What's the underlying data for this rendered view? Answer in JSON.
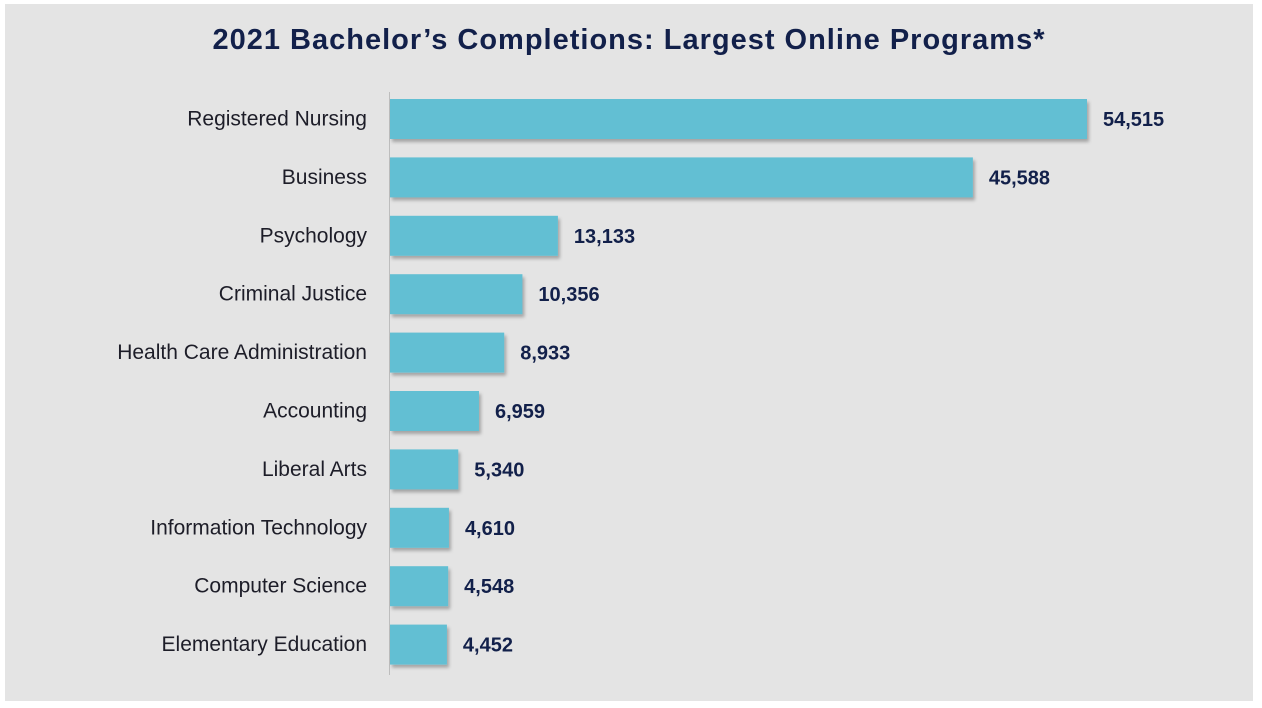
{
  "chart_data": {
    "type": "bar",
    "orientation": "horizontal",
    "title": "2021 Bachelor’s Completions: Largest Online Programs*",
    "categories": [
      "Registered Nursing",
      "Business",
      "Psychology",
      "Criminal Justice",
      "Health Care Administration",
      "Accounting",
      "Liberal Arts",
      "Information Technology",
      "Computer Science",
      "Elementary Education"
    ],
    "values": [
      54515,
      45588,
      13133,
      10356,
      8933,
      6959,
      5340,
      4610,
      4548,
      4452
    ],
    "value_labels": [
      "54,515",
      "45,588",
      "13,133",
      "10,356",
      "8,933",
      "6,959",
      "5,340",
      "4,610",
      "4,548",
      "4,452"
    ],
    "xlim": [
      0,
      54515
    ],
    "grid": false,
    "legend": "none",
    "bar_color": "#62bfd3",
    "background_color": "#e4e4e4",
    "title_color": "#12204a",
    "value_label_color": "#12204a"
  }
}
